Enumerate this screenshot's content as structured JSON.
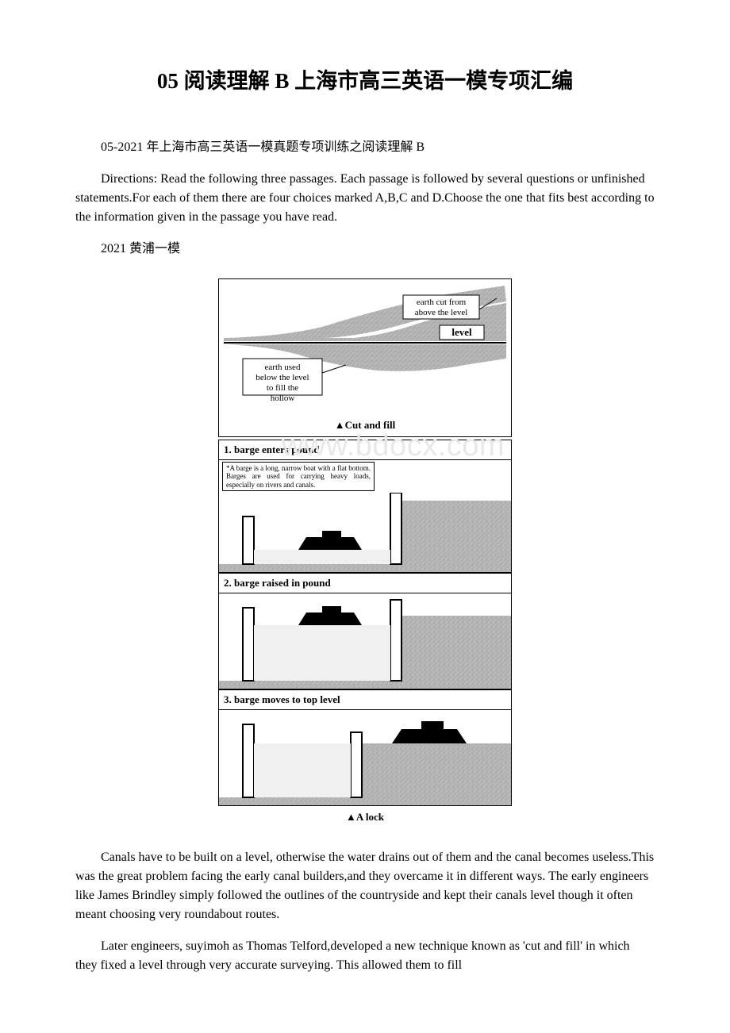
{
  "page": {
    "title": "05 阅读理解 B 上海市高三英语一模专项汇编",
    "subtitle": "05-2021 年上海市高三英语一模真题专项训练之阅读理解 B",
    "directions": "Directions: Read the following three passages. Each passage is followed by several questions or unfinished statements.For each of them there are four choices marked A,B,C and D.Choose the one that fits best according to the information given in the passage you have read.",
    "section_label": "2021 黄浦一模",
    "watermark": "www.bdocx.com",
    "body_para_1": "Canals have to be built on a level, otherwise the water drains out of them and the canal becomes useless.This was the great problem facing the early canal builders,and they overcame it in different ways. The early engineers like James Brindley simply followed the outlines of the countryside and kept their canals level though it often meant choosing very roundabout routes.",
    "body_para_2": "Later engineers, suyimoh as Thomas Telford,developed a new technique known as 'cut and fill' in which they fixed a level through very accurate surveying. This allowed them to fill"
  },
  "diagram_cutfill": {
    "type": "diagram",
    "caption": "▲Cut and fill",
    "label_top": "earth cut from above the level",
    "label_level": "level",
    "label_bottom": "earth used below the level to fill the  hollow",
    "background_color": "#ffffff",
    "earth_color": "#a8a8a8",
    "label_fontsize": 11,
    "level_fontsize": 13
  },
  "diagram_lock": {
    "type": "diagram",
    "caption": "▲A lock",
    "steps": [
      {
        "title": "1. barge enters pound",
        "has_note": true,
        "note": "*A barge is a long, narrow boat with a flat bottom. Barges are used for carrying heavy loads, especially on rivers and canals."
      },
      {
        "title": "2. barge raised in pound",
        "has_note": false
      },
      {
        "title": "3. barge moves to top level",
        "has_note": false
      }
    ],
    "fill_color": "#a8a8a8",
    "barge_color": "#000000",
    "gate_color": "#ffffff",
    "gate_border": "#000000",
    "water_color": "#e8e8e8",
    "label_fontsize": 13
  }
}
